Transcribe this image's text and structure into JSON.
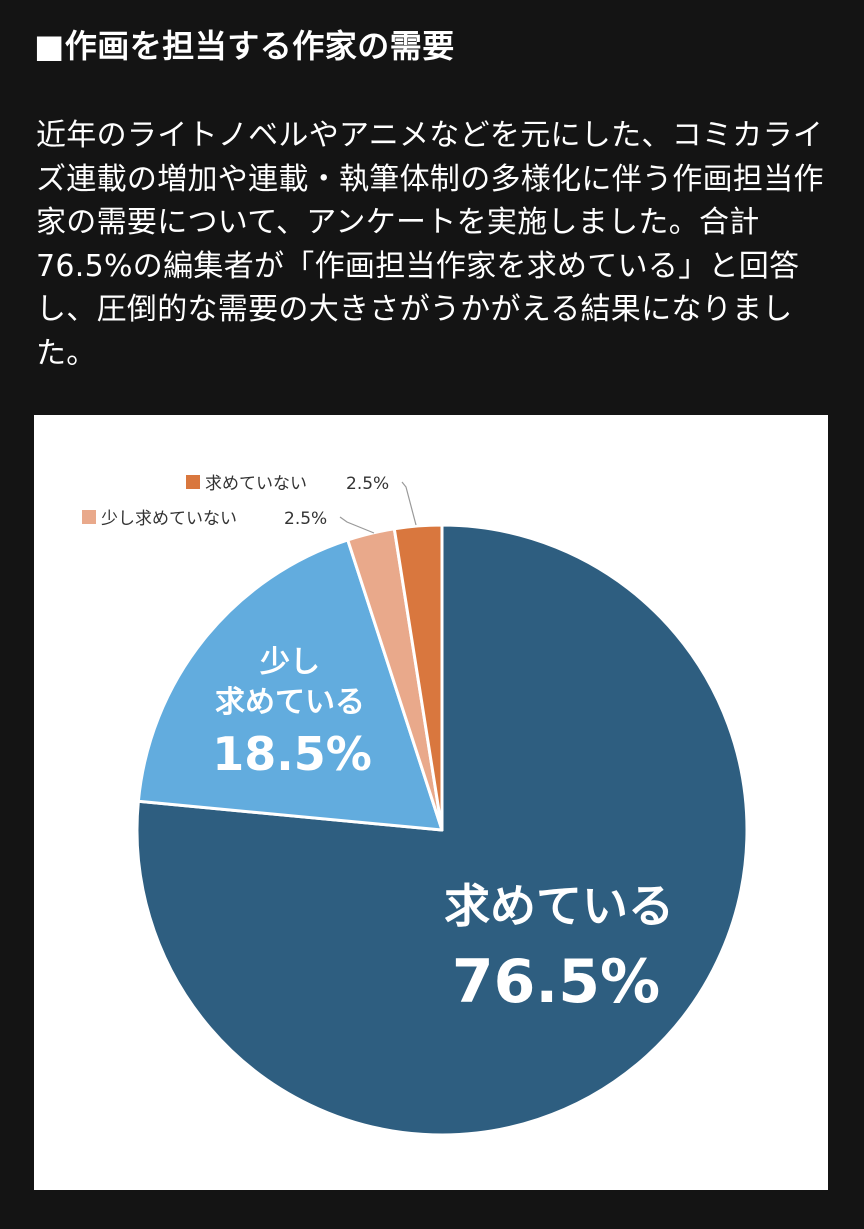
{
  "section": {
    "title": "■作画を担当する作家の需要",
    "body": "近年のライトノベルやアニメなどを元にした、コミカライズ連載の増加や連載・執筆体制の多様化に伴う作画担当作家の需要について、アンケートを実施しました。合計76.5%の編集者が「作画担当作家を求めている」と回答し、圧倒的な需要の大きさがうかがえる結果になりました。"
  },
  "chart_data": {
    "type": "pie",
    "slices": [
      {
        "label": "求めている",
        "value": 76.5,
        "value_label": "76.5%",
        "color": "#2e5e80"
      },
      {
        "label": "少し求めている",
        "label_lines": [
          "少し",
          "求めている"
        ],
        "value": 18.5,
        "value_label": "18.5%",
        "color": "#62acde"
      },
      {
        "label": "少し求めていない",
        "value": 2.5,
        "value_label": "2.5%",
        "color": "#e9a98b"
      },
      {
        "label": "求めていない",
        "value": 2.5,
        "value_label": "2.5%",
        "color": "#d9773e"
      }
    ],
    "start": "12 o'clock, clockwise",
    "legend": "none"
  }
}
